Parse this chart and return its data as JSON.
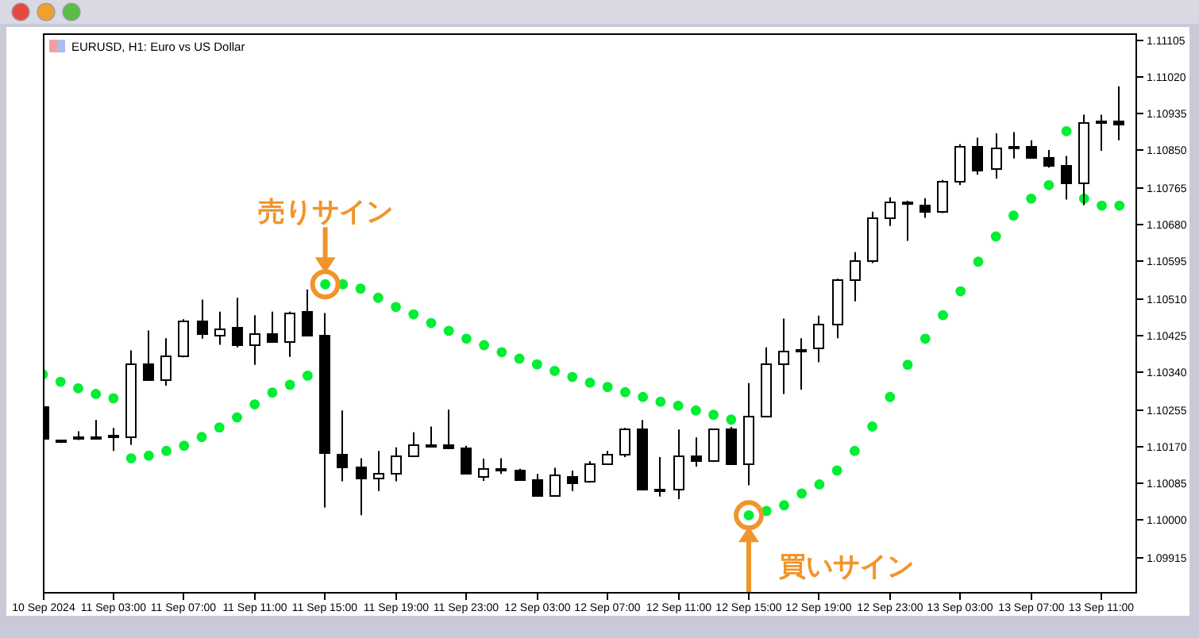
{
  "chart_data": {
    "type": "candlestick",
    "title": "EURUSD, H1: Euro vs US Dollar",
    "color": "#000000",
    "marker": "circle",
    "x": [
      "2024-09-10T23:00",
      "2024-09-11T00:00",
      "2024-09-11T01:00",
      "2024-09-11T02:00",
      "2024-09-11T03:00",
      "2024-09-11T04:00",
      "2024-09-11T05:00",
      "2024-09-11T06:00",
      "2024-09-11T07:00",
      "2024-09-11T08:00",
      "2024-09-11T09:00",
      "2024-09-11T10:00",
      "2024-09-11T11:00",
      "2024-09-11T12:00",
      "2024-09-11T13:00",
      "2024-09-11T14:00",
      "2024-09-11T15:00",
      "2024-09-11T16:00",
      "2024-09-11T17:00",
      "2024-09-11T18:00",
      "2024-09-11T19:00",
      "2024-09-11T20:00",
      "2024-09-11T21:00",
      "2024-09-11T22:00",
      "2024-09-11T23:00",
      "2024-09-12T00:00",
      "2024-09-12T01:00",
      "2024-09-12T02:00",
      "2024-09-12T03:00",
      "2024-09-12T04:00",
      "2024-09-12T05:00",
      "2024-09-12T06:00",
      "2024-09-12T07:00",
      "2024-09-12T08:00",
      "2024-09-12T09:00",
      "2024-09-12T10:00",
      "2024-09-12T11:00",
      "2024-09-12T12:00",
      "2024-09-12T13:00",
      "2024-09-12T14:00",
      "2024-09-12T15:00",
      "2024-09-12T16:00",
      "2024-09-12T17:00",
      "2024-09-12T18:00",
      "2024-09-12T19:00",
      "2024-09-12T20:00",
      "2024-09-12T21:00",
      "2024-09-12T22:00",
      "2024-09-12T23:00",
      "2024-09-13T00:00",
      "2024-09-13T01:00",
      "2024-09-13T02:00",
      "2024-09-13T03:00",
      "2024-09-13T04:00",
      "2024-09-13T05:00",
      "2024-09-13T06:00",
      "2024-09-13T07:00",
      "2024-09-13T08:00",
      "2024-09-13T09:00",
      "2024-09-13T10:00",
      "2024-09-13T11:00",
      "2024-09-13T12:00"
    ],
    "ohlc": [
      [
        1.10259,
        1.10259,
        1.10186,
        1.10186
      ],
      [
        1.10182,
        1.10186,
        1.10178,
        1.10183
      ],
      [
        1.10186,
        1.10205,
        1.10185,
        1.10191
      ],
      [
        1.10192,
        1.10231,
        1.10188,
        1.10193
      ],
      [
        1.10192,
        1.10213,
        1.1016,
        1.10194
      ],
      [
        1.10193,
        1.10391,
        1.10174,
        1.10358
      ],
      [
        1.10358,
        1.10437,
        1.10321,
        1.10323
      ],
      [
        1.10323,
        1.10419,
        1.1031,
        1.10378
      ],
      [
        1.10376,
        1.10463,
        1.10375,
        1.10458
      ],
      [
        1.10458,
        1.10508,
        1.10418,
        1.10429
      ],
      [
        1.10426,
        1.1048,
        1.10404,
        1.10441
      ],
      [
        1.10442,
        1.10512,
        1.10398,
        1.10403
      ],
      [
        1.10403,
        1.10472,
        1.10358,
        1.1043
      ],
      [
        1.10429,
        1.1048,
        1.1041,
        1.10412
      ],
      [
        1.10412,
        1.1048,
        1.10376,
        1.10477
      ],
      [
        1.1048,
        1.10531,
        1.10425,
        1.10426
      ],
      [
        1.10425,
        1.10477,
        1.1003,
        1.10155
      ],
      [
        1.10152,
        1.10253,
        1.1009,
        1.10121
      ],
      [
        1.10121,
        1.10143,
        1.10012,
        1.10095
      ],
      [
        1.10095,
        1.1016,
        1.10068,
        1.10109
      ],
      [
        1.10108,
        1.10168,
        1.1009,
        1.10148
      ],
      [
        1.10149,
        1.10203,
        1.10148,
        1.10174
      ],
      [
        1.10174,
        1.10216,
        1.10171,
        1.10172
      ],
      [
        1.10174,
        1.10255,
        1.10164,
        1.10165
      ],
      [
        1.10166,
        1.10172,
        1.10106,
        1.10107
      ],
      [
        1.10102,
        1.10142,
        1.10091,
        1.1012
      ],
      [
        1.10119,
        1.10143,
        1.10107,
        1.10113
      ],
      [
        1.10115,
        1.10119,
        1.10092,
        1.10093
      ],
      [
        1.10093,
        1.10107,
        1.10055,
        1.10058
      ],
      [
        1.10058,
        1.10121,
        1.10057,
        1.10103
      ],
      [
        1.10102,
        1.10115,
        1.10068,
        1.10087
      ],
      [
        1.10089,
        1.10136,
        1.10087,
        1.1013
      ],
      [
        1.1013,
        1.1016,
        1.10129,
        1.10152
      ],
      [
        1.10152,
        1.10213,
        1.10146,
        1.10209
      ],
      [
        1.10209,
        1.10231,
        1.10069,
        1.1007
      ],
      [
        1.10072,
        1.10146,
        1.10055,
        1.10069
      ],
      [
        1.1007,
        1.10209,
        1.10049,
        1.10146
      ],
      [
        1.10146,
        1.10191,
        1.10124,
        1.10136
      ],
      [
        1.10136,
        1.10211,
        1.10135,
        1.10209
      ],
      [
        1.10209,
        1.10215,
        1.10128,
        1.1013
      ],
      [
        1.1013,
        1.10316,
        1.10081,
        1.1024
      ],
      [
        1.1024,
        1.10398,
        1.10239,
        1.10358
      ],
      [
        1.10358,
        1.10464,
        1.10291,
        1.10389
      ],
      [
        1.10391,
        1.10419,
        1.10301,
        1.10393
      ],
      [
        1.10395,
        1.10471,
        1.10364,
        1.10452
      ],
      [
        1.10452,
        1.10556,
        1.10419,
        1.10552
      ],
      [
        1.10552,
        1.10617,
        1.10504,
        1.10597
      ],
      [
        1.10597,
        1.1071,
        1.10592,
        1.10694
      ],
      [
        1.10694,
        1.10743,
        1.10677,
        1.10732
      ],
      [
        1.10727,
        1.10735,
        1.10643,
        1.1073
      ],
      [
        1.10725,
        1.10741,
        1.10696,
        1.10709
      ],
      [
        1.10708,
        1.10783,
        1.10707,
        1.1078
      ],
      [
        1.1078,
        1.10865,
        1.10771,
        1.1086
      ],
      [
        1.1086,
        1.1088,
        1.10795,
        1.10806
      ],
      [
        1.10808,
        1.1089,
        1.10786,
        1.10855
      ],
      [
        1.10856,
        1.10893,
        1.10832,
        1.10859
      ],
      [
        1.1086,
        1.10874,
        1.10833,
        1.10835
      ],
      [
        1.10834,
        1.10852,
        1.10811,
        1.10817
      ],
      [
        1.10817,
        1.10838,
        1.10738,
        1.10777
      ],
      [
        1.10777,
        1.10933,
        1.10725,
        1.10914
      ],
      [
        1.10916,
        1.10933,
        1.1085,
        1.10918
      ],
      [
        1.10919,
        1.10998,
        1.10874,
        1.1091
      ]
    ],
    "series": [
      {
        "type": "scatter",
        "color": "#00ee33",
        "values": [
          1.10336,
          1.10319,
          1.10304,
          1.10291,
          1.10281,
          1.10143,
          1.10149,
          1.1016,
          1.10172,
          1.10192,
          1.10214,
          1.10237,
          1.10267,
          1.10294,
          1.10312,
          1.10333,
          1.10543,
          1.10543,
          1.10533,
          1.10512,
          1.10491,
          1.10474,
          1.10454,
          1.10436,
          1.10418,
          1.10403,
          1.10387,
          1.10372,
          1.10359,
          1.10344,
          1.1033,
          1.10317,
          1.10307,
          1.10295,
          1.10284,
          1.10273,
          1.10264,
          1.10253,
          1.10243,
          1.10232,
          1.10012,
          1.10022,
          1.10035,
          1.10062,
          1.10083,
          1.10115,
          1.1016,
          1.10216,
          1.10284,
          1.10358,
          1.10418,
          1.10472,
          1.10527,
          1.10595,
          1.10653,
          1.10701,
          1.1074,
          1.10771,
          1.10895,
          1.1074,
          1.10724,
          1.10724
        ]
      }
    ],
    "xlim": [
      "2024-09-10T23:00",
      "2024-09-13T13:00"
    ],
    "xticks": [
      {
        "value": "2024-09-10T23:00",
        "label": "10 Sep 2024"
      },
      {
        "value": "2024-09-11T03:00",
        "label": "11 Sep 03:00"
      },
      {
        "value": "2024-09-11T07:00",
        "label": "11 Sep 07:00"
      },
      {
        "value": "2024-09-11T11:00",
        "label": "11 Sep 11:00"
      },
      {
        "value": "2024-09-11T15:00",
        "label": "11 Sep 15:00"
      },
      {
        "value": "2024-09-11T19:00",
        "label": "11 Sep 19:00"
      },
      {
        "value": "2024-09-11T23:00",
        "label": "11 Sep 23:00"
      },
      {
        "value": "2024-09-12T03:00",
        "label": "12 Sep 03:00"
      },
      {
        "value": "2024-09-12T07:00",
        "label": "12 Sep 07:00"
      },
      {
        "value": "2024-09-12T11:00",
        "label": "12 Sep 11:00"
      },
      {
        "value": "2024-09-12T15:00",
        "label": "12 Sep 15:00"
      },
      {
        "value": "2024-09-12T19:00",
        "label": "12 Sep 19:00"
      },
      {
        "value": "2024-09-12T23:00",
        "label": "12 Sep 23:00"
      },
      {
        "value": "2024-09-13T03:00",
        "label": "13 Sep 03:00"
      },
      {
        "value": "2024-09-13T07:00",
        "label": "13 Sep 07:00"
      },
      {
        "value": "2024-09-13T11:00",
        "label": "13 Sep 11:00"
      }
    ],
    "ylim": [
      1.09832,
      1.1112
    ],
    "yticks": [
      1.09915,
      {
        "value": 1.1,
        "label": "1.10000"
      },
      1.10085,
      {
        "value": 1.1017,
        "label": "1.10170"
      },
      1.10255,
      {
        "value": 1.1034,
        "label": "1.10340"
      },
      1.10425,
      {
        "value": 1.1051,
        "label": "1.10510"
      },
      1.10595,
      {
        "value": 1.1068,
        "label": "1.10680"
      },
      1.10765,
      {
        "value": 1.1085,
        "label": "1.10850"
      },
      1.10935,
      {
        "value": 1.1102,
        "label": "1.11020"
      },
      1.11105
    ],
    "annotations": [
      {
        "text": "売りサイン",
        "x": "2024-09-11T15:00",
        "y": 1.10543
      },
      {
        "text": "買いサイン",
        "x": "2024-09-12T15:00",
        "y": 1.10012
      }
    ]
  }
}
